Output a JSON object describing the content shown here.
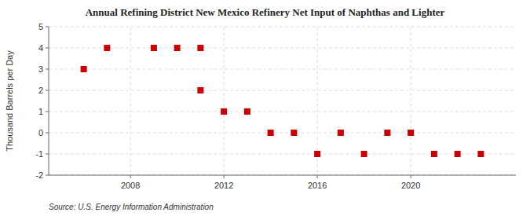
{
  "chart_data": {
    "type": "scatter",
    "title": "Annual Refining District New Mexico Refinery Net Input of Naphthas and Lighter",
    "ylabel": "Thousand Barrels per Day",
    "annotations": [
      "Source: U.S. Energy Information Administration"
    ],
    "x": [
      2006,
      2007,
      2009,
      2010,
      2011,
      2011,
      2012,
      2013,
      2014,
      2015,
      2016,
      2017,
      2018,
      2019,
      2020,
      2021,
      2022,
      2023
    ],
    "values": [
      3,
      4,
      4,
      4,
      4,
      2,
      1,
      1,
      0,
      0,
      -1,
      0,
      -1,
      0,
      0,
      -1,
      -1,
      -1
    ],
    "color": "#cc0000",
    "marker": "square",
    "xlim": [
      2004.5,
      2024.5
    ],
    "ylim": [
      -2,
      5
    ],
    "xticks": [
      2008,
      2012,
      2016,
      2020
    ],
    "yticks": [
      -2,
      -1,
      0,
      1,
      2,
      3,
      4,
      5
    ],
    "grid": true
  }
}
